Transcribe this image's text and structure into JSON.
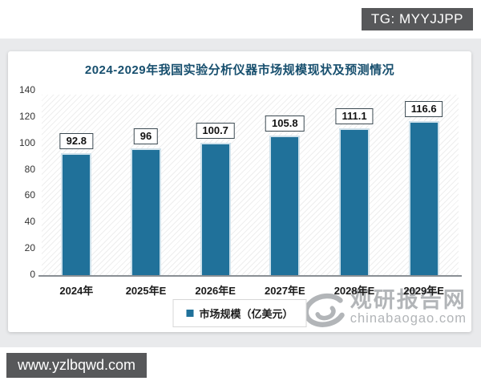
{
  "overlays": {
    "top_badge": "TG: MYYJJPP",
    "bottom_badge": "www.yzlbqwd.com"
  },
  "watermark": {
    "logo": "swirl-globe-logo",
    "name": "观研报告网",
    "domain": "chinabaogao.com"
  },
  "chart_data": {
    "type": "bar",
    "title": "2024-2029年我国实验分析仪器市场规模现状及预测情况",
    "categories": [
      "2024年",
      "2025年E",
      "2026年E",
      "2027年E",
      "2028年E",
      "2029年E"
    ],
    "values": [
      92.8,
      96,
      100.7,
      105.8,
      111.1,
      116.6
    ],
    "value_labels": [
      "92.8",
      "96",
      "100.7",
      "105.8",
      "111.1",
      "116.6"
    ],
    "legend": "市场规模（亿美元）",
    "xlabel": "",
    "ylabel": "",
    "ylim": [
      0,
      140
    ],
    "yticks": [
      0,
      20,
      40,
      60,
      80,
      100,
      120,
      140
    ],
    "grid": false,
    "plot_background": "diagonal-hatch",
    "legend_position": "bottom-center",
    "bar_color": "#20719a"
  },
  "colors": {
    "bar": "#20719a",
    "bar_border": "#cfe2ec",
    "title": "#174f6e",
    "badge_bg": "#57585a",
    "badge_text": "#ffffff",
    "watermark": "#b2b5b8",
    "band_bg": "#e9eaec",
    "axis": "#8a8f94"
  }
}
